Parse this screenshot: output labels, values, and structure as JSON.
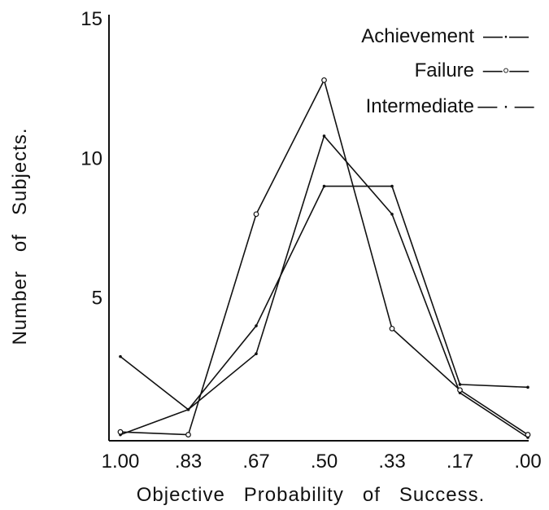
{
  "chart_data": {
    "type": "line",
    "title": "",
    "xlabel": "Objective   Probability   of   Success.",
    "ylabel": "Number   of   Subjects.",
    "categories": [
      "1.00",
      ".83",
      ".67",
      ".50",
      ".33",
      ".17",
      ".00"
    ],
    "ylim": [
      0,
      15
    ],
    "yticks": [
      5,
      10,
      15
    ],
    "grid": false,
    "legend_position": "top-right",
    "series": [
      {
        "name": "Achievement",
        "legend_symbol": "—·—",
        "marker": "dot",
        "values": [
          0.1,
          1.0,
          3.0,
          10.8,
          8.0,
          1.6,
          0.0
        ]
      },
      {
        "name": "Failure",
        "legend_symbol": "—◦—",
        "marker": "circle",
        "values": [
          0.2,
          0.1,
          8.0,
          12.8,
          3.9,
          1.7,
          0.1
        ]
      },
      {
        "name": "Intermediate",
        "legend_symbol": "— · —",
        "marker": "dot",
        "values": [
          2.9,
          1.0,
          4.0,
          9.0,
          9.0,
          1.9,
          1.8
        ]
      }
    ]
  }
}
